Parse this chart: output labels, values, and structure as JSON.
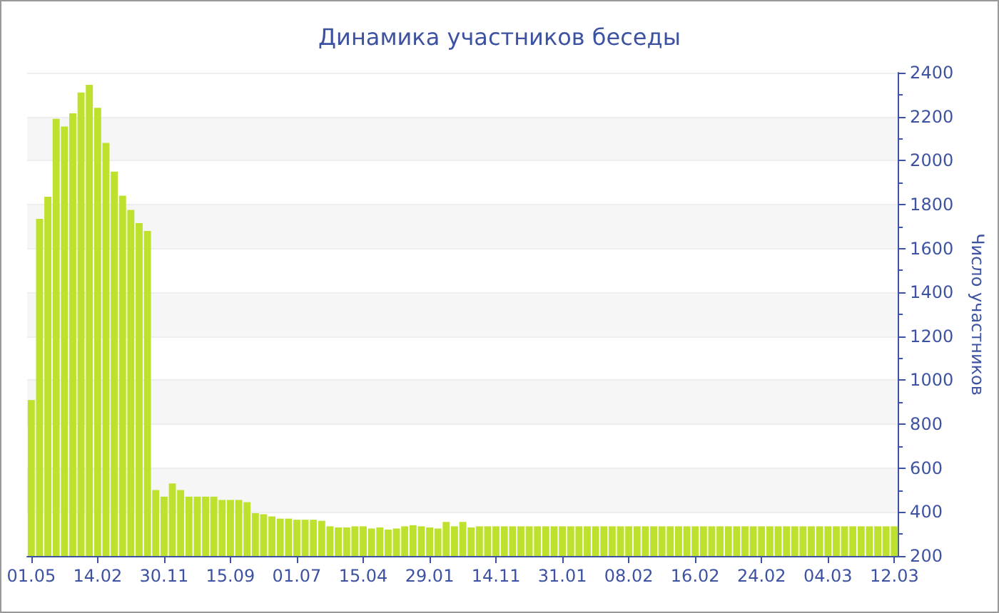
{
  "chart_data": {
    "type": "bar",
    "title": "Динамика участников беседы",
    "ylabel": "Число участников",
    "categories": [
      "01.05",
      null,
      null,
      null,
      null,
      null,
      null,
      null,
      "14.02",
      null,
      null,
      null,
      null,
      null,
      null,
      null,
      "30.11",
      null,
      null,
      null,
      null,
      null,
      null,
      null,
      "15.09",
      null,
      null,
      null,
      null,
      null,
      null,
      null,
      "01.07",
      null,
      null,
      null,
      null,
      null,
      null,
      null,
      "15.04",
      null,
      null,
      null,
      null,
      null,
      null,
      null,
      "29.01",
      null,
      null,
      null,
      null,
      null,
      null,
      null,
      "14.11",
      null,
      null,
      null,
      null,
      null,
      null,
      null,
      "31.01",
      null,
      null,
      null,
      null,
      null,
      null,
      null,
      "08.02",
      null,
      null,
      null,
      null,
      null,
      null,
      null,
      "16.02",
      null,
      null,
      null,
      null,
      null,
      null,
      null,
      "24.02",
      null,
      null,
      null,
      null,
      null,
      null,
      null,
      "04.03",
      null,
      null,
      null,
      null,
      null,
      null,
      null,
      "12.03"
    ],
    "values": [
      910,
      1735,
      1835,
      2190,
      2155,
      2215,
      2310,
      2345,
      2240,
      2080,
      1950,
      1840,
      1775,
      1715,
      1680,
      500,
      470,
      530,
      500,
      470,
      470,
      470,
      470,
      455,
      455,
      455,
      445,
      395,
      390,
      380,
      370,
      370,
      365,
      365,
      365,
      360,
      335,
      330,
      330,
      335,
      335,
      325,
      330,
      320,
      325,
      335,
      340,
      335,
      330,
      325,
      355,
      335,
      355,
      330,
      335,
      335,
      335,
      335,
      335,
      335,
      335,
      335,
      335,
      335,
      335,
      335,
      335,
      335,
      335,
      335,
      335,
      335,
      335,
      335,
      335,
      335,
      335,
      335,
      335,
      335,
      335,
      335,
      335,
      335,
      335,
      335,
      335,
      335,
      335,
      335,
      335,
      335,
      335,
      335,
      335,
      335,
      335,
      335,
      335,
      335,
      335,
      335,
      335,
      335,
      335
    ],
    "color": "#bde12d",
    "ylim": [
      200,
      2400
    ],
    "yticks": [
      200,
      400,
      600,
      800,
      1000,
      1200,
      1400,
      1600,
      1800,
      2000,
      2200,
      2400
    ],
    "grid": true
  }
}
